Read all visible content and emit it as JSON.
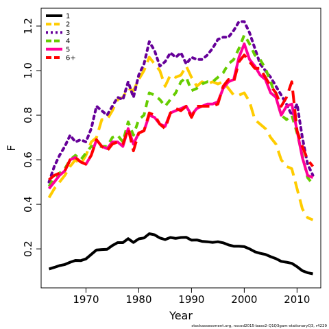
{
  "chart_data": {
    "type": "line",
    "xlabel": "Year",
    "ylabel": "F",
    "xlim": [
      1961.5,
      2014.5
    ],
    "ylim": [
      0.025,
      1.28
    ],
    "x_ticks": [
      1970,
      1980,
      1990,
      2000,
      2010
    ],
    "y_ticks": [
      0.2,
      0.4,
      0.6,
      0.8,
      1.0,
      1.2
    ],
    "legend_position": "top-left",
    "footnote": "stockassessment.org, nscod2015-base2-Q1Q3gam-stationaryQ3, r4229",
    "x": [
      1963,
      1964,
      1965,
      1966,
      1967,
      1968,
      1969,
      1970,
      1971,
      1972,
      1973,
      1974,
      1975,
      1976,
      1977,
      1978,
      1979,
      1980,
      1981,
      1982,
      1983,
      1984,
      1985,
      1986,
      1987,
      1988,
      1989,
      1990,
      1991,
      1992,
      1993,
      1994,
      1995,
      1996,
      1997,
      1998,
      1999,
      2000,
      2001,
      2002,
      2003,
      2004,
      2005,
      2006,
      2007,
      2008,
      2009,
      2010,
      2011,
      2012,
      2013
    ],
    "series": [
      {
        "name": "1",
        "color": "#000000",
        "dash": "solid",
        "values": [
          0.11,
          0.117,
          0.125,
          0.13,
          0.14,
          0.148,
          0.147,
          0.155,
          0.175,
          0.195,
          0.197,
          0.198,
          0.215,
          0.228,
          0.228,
          0.246,
          0.229,
          0.245,
          0.249,
          0.268,
          0.263,
          0.249,
          0.242,
          0.251,
          0.247,
          0.251,
          0.252,
          0.239,
          0.24,
          0.234,
          0.232,
          0.229,
          0.232,
          0.227,
          0.218,
          0.212,
          0.212,
          0.21,
          0.2,
          0.187,
          0.18,
          0.175,
          0.165,
          0.156,
          0.144,
          0.14,
          0.135,
          0.12,
          0.102,
          0.093,
          0.088
        ]
      },
      {
        "name": "2",
        "color": "#ffcc00",
        "dash": "long",
        "values": [
          0.43,
          0.47,
          0.5,
          0.53,
          0.57,
          0.6,
          0.58,
          0.62,
          0.68,
          0.7,
          0.78,
          0.78,
          0.82,
          0.87,
          0.88,
          0.92,
          0.91,
          0.96,
          1.0,
          1.06,
          1.03,
          1.0,
          0.93,
          0.98,
          0.97,
          0.98,
          1.02,
          0.97,
          0.93,
          0.95,
          0.94,
          0.95,
          0.94,
          0.95,
          0.92,
          0.89,
          0.89,
          0.9,
          0.86,
          0.78,
          0.76,
          0.74,
          0.7,
          0.67,
          0.6,
          0.57,
          0.56,
          0.47,
          0.38,
          0.34,
          0.33
        ]
      },
      {
        "name": "3",
        "color": "#660099",
        "dash": "dot",
        "values": [
          0.5,
          0.57,
          0.62,
          0.66,
          0.71,
          0.68,
          0.69,
          0.68,
          0.74,
          0.84,
          0.82,
          0.8,
          0.84,
          0.88,
          0.87,
          0.95,
          0.88,
          0.98,
          1.03,
          1.13,
          1.09,
          1.02,
          1.04,
          1.08,
          1.06,
          1.08,
          1.03,
          1.06,
          1.05,
          1.05,
          1.07,
          1.1,
          1.14,
          1.15,
          1.15,
          1.18,
          1.22,
          1.22,
          1.17,
          1.1,
          1.03,
          1.0,
          0.97,
          0.93,
          0.89,
          0.85,
          0.8,
          0.85,
          0.7,
          0.58,
          0.53
        ]
      },
      {
        "name": "4",
        "color": "#66cc00",
        "dash": "medium",
        "values": [
          0.48,
          0.52,
          0.54,
          0.56,
          0.6,
          0.62,
          0.6,
          0.63,
          0.66,
          0.66,
          0.66,
          0.66,
          0.7,
          0.71,
          0.68,
          0.77,
          0.71,
          0.78,
          0.8,
          0.9,
          0.89,
          0.87,
          0.84,
          0.87,
          0.9,
          0.95,
          0.97,
          0.91,
          0.92,
          0.94,
          0.95,
          0.95,
          0.97,
          0.99,
          1.03,
          1.05,
          1.1,
          1.16,
          1.12,
          1.07,
          1.05,
          1.01,
          0.95,
          0.88,
          0.8,
          0.78,
          0.8,
          0.72,
          0.62,
          0.52,
          0.49
        ]
      },
      {
        "name": "5",
        "color": "#ff0099",
        "dash": "solid",
        "values": [
          0.47,
          0.5,
          0.53,
          0.55,
          0.6,
          0.61,
          0.59,
          0.58,
          0.62,
          0.69,
          0.66,
          0.65,
          0.68,
          0.68,
          0.66,
          0.74,
          0.67,
          0.72,
          0.73,
          0.8,
          0.79,
          0.76,
          0.75,
          0.81,
          0.82,
          0.83,
          0.84,
          0.8,
          0.83,
          0.84,
          0.85,
          0.85,
          0.86,
          0.92,
          0.95,
          0.96,
          1.06,
          1.12,
          1.05,
          1.02,
          0.98,
          0.96,
          0.9,
          0.88,
          0.8,
          0.84,
          0.85,
          0.73,
          0.61,
          0.53,
          0.52
        ]
      },
      {
        "name": "6+",
        "color": "#ff0000",
        "dash": "long",
        "values": [
          0.51,
          0.53,
          0.54,
          0.55,
          0.6,
          0.61,
          0.59,
          0.58,
          0.62,
          0.69,
          0.66,
          0.64,
          0.67,
          0.68,
          0.67,
          0.74,
          0.64,
          0.72,
          0.73,
          0.81,
          0.8,
          0.76,
          0.74,
          0.81,
          0.83,
          0.82,
          0.84,
          0.79,
          0.84,
          0.84,
          0.84,
          0.84,
          0.85,
          0.93,
          0.96,
          0.95,
          1.04,
          1.07,
          1.04,
          1.01,
          1.01,
          0.97,
          0.93,
          0.9,
          0.84,
          0.88,
          0.95,
          0.73,
          0.66,
          0.6,
          0.57
        ]
      }
    ]
  }
}
